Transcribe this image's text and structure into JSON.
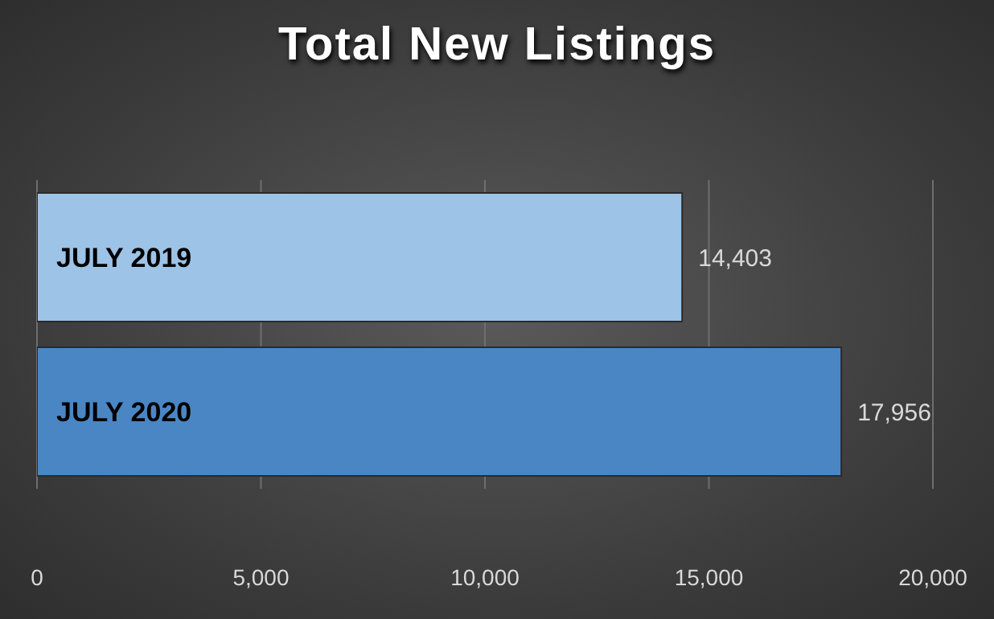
{
  "chart_data": {
    "type": "bar",
    "title": "Total New Listings",
    "orientation": "horizontal",
    "categories": [
      "JULY 2019",
      "JULY 2020"
    ],
    "values": [
      14403,
      17956
    ],
    "colors": [
      "#9dc3e6",
      "#4a86c4"
    ],
    "xlim": [
      0,
      20000
    ],
    "xticks": [
      {
        "value": 0,
        "label": "0"
      },
      {
        "value": 5000,
        "label": "5,000"
      },
      {
        "value": 10000,
        "label": "10,000"
      },
      {
        "value": 15000,
        "label": "15,000"
      },
      {
        "value": 20000,
        "label": "20,000"
      }
    ],
    "value_labels": [
      "14,403",
      "17,956"
    ],
    "grid": "x",
    "legend": false
  }
}
